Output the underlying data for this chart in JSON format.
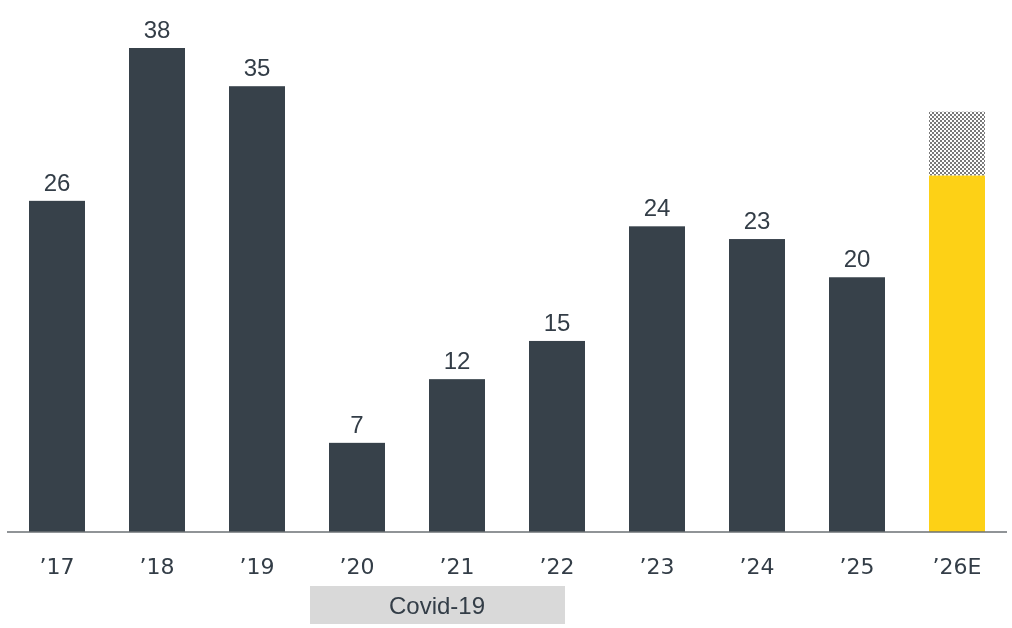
{
  "chart_data": {
    "type": "bar",
    "stacked": true,
    "categories": [
      "’17",
      "’18",
      "’19",
      "’20",
      "’21",
      "’22",
      "’23",
      "’24",
      "’25",
      "’26E"
    ],
    "series": [
      {
        "colors": [
          "#37414a",
          "#37414a",
          "#37414a",
          "#37414a",
          "#37414a",
          "#37414a",
          "#37414a",
          "#37414a",
          "#37414a",
          "#fdd116"
        ],
        "values": [
          26,
          38,
          35,
          7,
          12,
          15,
          24,
          23,
          20,
          28
        ],
        "value_labels": [
          "26",
          "38",
          "35",
          "7",
          "12",
          "15",
          "24",
          "23",
          "20",
          null
        ]
      },
      {
        "color": "#7a7a7a",
        "values": [
          null,
          null,
          null,
          null,
          null,
          null,
          null,
          null,
          null,
          5
        ]
      }
    ],
    "annotations": [
      "Covid-19"
    ]
  }
}
